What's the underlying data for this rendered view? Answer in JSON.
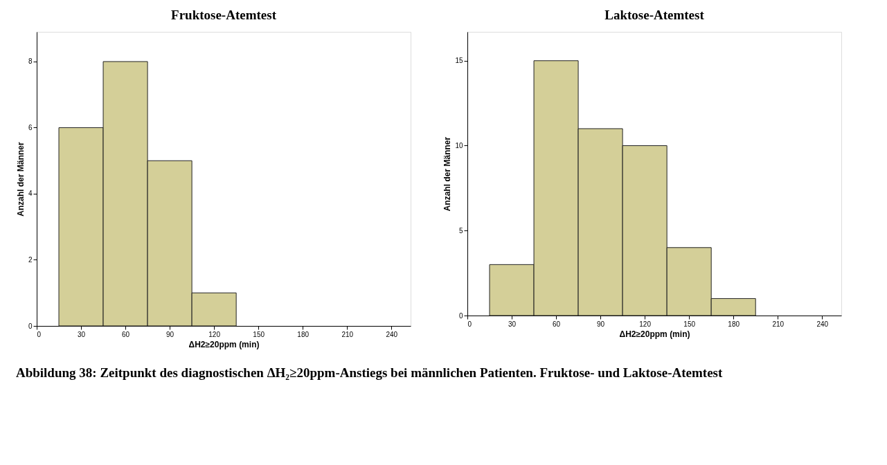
{
  "chart_data": [
    {
      "type": "histogram",
      "title": "Fruktose-Atemtest",
      "xlabel": "ΔH2≥20ppm (min)",
      "ylabel": "Anzahl der Männer",
      "bins": [
        15,
        45,
        75,
        105,
        135
      ],
      "values": [
        6,
        8,
        5,
        1
      ],
      "color": "#d4cf98",
      "xlim": [
        0,
        253
      ],
      "xticks": [
        0,
        30,
        60,
        90,
        120,
        150,
        180,
        210,
        240
      ],
      "ylim": [
        0,
        8.9
      ],
      "yticks": [
        0,
        2,
        4,
        6,
        8
      ],
      "grid": false
    },
    {
      "type": "histogram",
      "title": "Laktose-Atemtest",
      "xlabel": "ΔH2≥20ppm (min)",
      "ylabel": "Anzahl der Männer",
      "bins": [
        15,
        45,
        75,
        105,
        135,
        165,
        195
      ],
      "values": [
        3,
        15,
        11,
        10,
        4,
        1
      ],
      "color": "#d4cf98",
      "xlim": [
        0,
        253
      ],
      "xticks": [
        0,
        30,
        60,
        90,
        120,
        150,
        180,
        210,
        240
      ],
      "ylim": [
        0,
        16.7
      ],
      "yticks": [
        0,
        5,
        10,
        15
      ],
      "grid": false,
      "annotations": [
        "Abbildung 38: Zeitpunkt des diagnostischen ΔH₂≥20ppm-Anstiegs bei männlichen Patienten. Fruktose- und Laktose-Atemtest"
      ]
    }
  ]
}
